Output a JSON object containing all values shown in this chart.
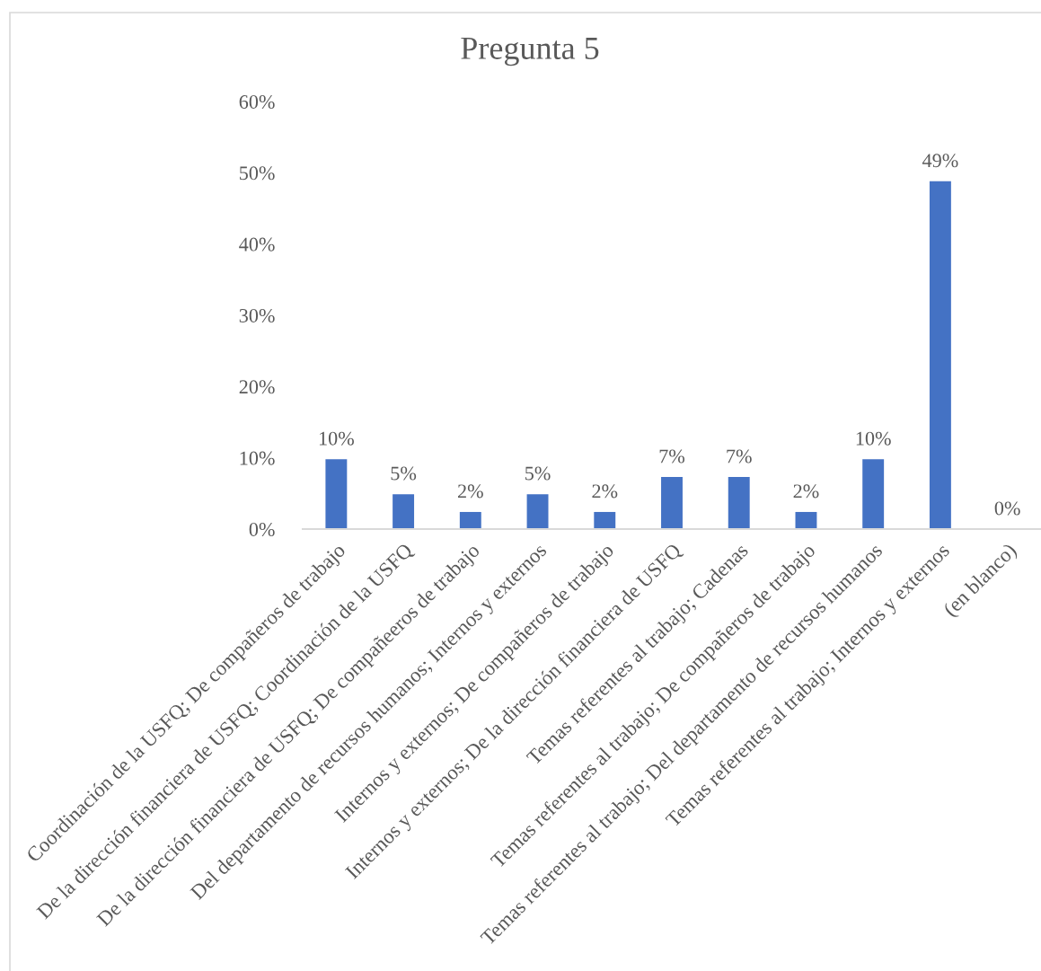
{
  "chart_data": {
    "type": "bar",
    "title": "Pregunta 5",
    "categories": [
      "Coordinación de la USFQ; De compañeros de trabajo",
      "De la dirección financiera de USFQ; Coordinación de la USFQ",
      "De la dirección financiera de USFQ; De compañeeros de trabajo",
      "Del departamento de recursos humanos; Internos y externos",
      "Internos y externos; De compañeros de trabajo",
      "Internos y externos; De la dirección financiera de USFQ",
      "Temas referentes al trabajo; Cadenas",
      "Temas referentes al trabajo; De compañeros de trabajo",
      "Temas referentes al trabajo; Del departamento de recursos humanos",
      "Temas referentes al trabajo; Internos y externos",
      "(en blanco)"
    ],
    "values": [
      9.8,
      4.9,
      2.4,
      4.9,
      2.4,
      7.3,
      7.3,
      2.4,
      9.8,
      48.8,
      0
    ],
    "value_labels": [
      "10%",
      "5%",
      "2%",
      "5%",
      "2%",
      "7%",
      "7%",
      "2%",
      "10%",
      "49%",
      "0%"
    ],
    "color": "#4472c4",
    "ylim": [
      0,
      60
    ],
    "yticks": [
      {
        "value": 0,
        "label": "0%"
      },
      {
        "value": 10,
        "label": "10%"
      },
      {
        "value": 20,
        "label": "20%"
      },
      {
        "value": 30,
        "label": "30%"
      },
      {
        "value": 40,
        "label": "40%"
      },
      {
        "value": 50,
        "label": "50%"
      },
      {
        "value": 60,
        "label": "60%"
      }
    ],
    "grid": false,
    "legend": false
  }
}
